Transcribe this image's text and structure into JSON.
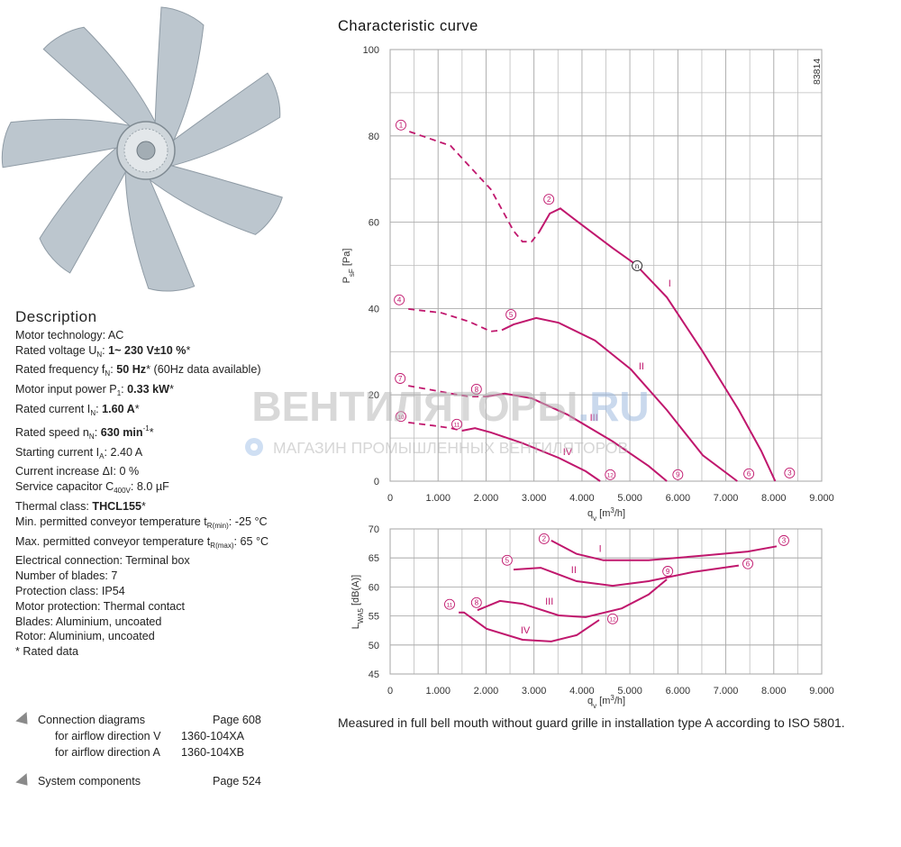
{
  "description": {
    "title": "Description",
    "lines": [
      [
        "Motor technology: AC"
      ],
      [
        "Rated voltage U",
        {
          "text": "N",
          "style": "sub"
        },
        ": ",
        {
          "text": "1~ 230 V±10 %",
          "style": "bold"
        },
        "*"
      ],
      [
        "Rated frequency f",
        {
          "text": "N",
          "style": "sub"
        },
        ": ",
        {
          "text": "50 Hz",
          "style": "bold"
        },
        "* (60Hz data available)"
      ],
      [
        "Motor input power P",
        {
          "text": "1",
          "style": "sub"
        },
        ": ",
        {
          "text": "0.33 kW",
          "style": "bold"
        },
        "*"
      ],
      [
        "Rated current I",
        {
          "text": "N",
          "style": "sub"
        },
        ": ",
        {
          "text": "1.60 A",
          "style": "bold"
        },
        "*"
      ],
      [
        "Rated speed n",
        {
          "text": "N",
          "style": "sub"
        },
        ": ",
        {
          "text": "630 min",
          "style": "bold"
        },
        {
          "text": "-1",
          "style": "sup"
        },
        "*"
      ],
      [
        "Starting current I",
        {
          "text": "A",
          "style": "sub"
        },
        ": 2.40 A"
      ],
      [
        "Current increase ΔI: 0 %"
      ],
      [
        "Service capacitor C",
        {
          "text": "400V",
          "style": "sub"
        },
        ": 8.0 µF"
      ],
      [
        "Thermal class: ",
        {
          "text": "THCL155",
          "style": "bold"
        },
        "*"
      ],
      [
        "Min. permitted conveyor temperature t",
        {
          "text": "R(min)",
          "style": "sub"
        },
        ": -25 °C"
      ],
      [
        "Max. permitted conveyor temperature t",
        {
          "text": "R(max)",
          "style": "sub"
        },
        ": 65 °C"
      ],
      [
        "Electrical connection: Terminal box"
      ],
      [
        "Number of blades: 7"
      ],
      [
        "Protection class: IP54"
      ],
      [
        "Motor protection: Thermal contact"
      ],
      [
        "Blades: Aluminium, uncoated"
      ],
      [
        "Rotor: Aluminium, uncoated"
      ],
      [
        "* Rated data"
      ]
    ]
  },
  "links": [
    {
      "title": "Connection diagrams",
      "page": "Page 608",
      "items": [
        {
          "text": "for airflow direction V",
          "code": "1360-104XA"
        },
        {
          "text": "for airflow direction A",
          "code": "1360-104XB"
        }
      ]
    },
    {
      "title": "System components",
      "page": "Page 524"
    }
  ],
  "note": "Measured in full bell mouth without guard grille in installation type A according to ISO 5801.",
  "watermark": {
    "title": "ВЕНТИЛЯТОРЫ",
    "domain": ".RU",
    "subtitle": "МАГАЗИН ПРОМЫШЛЕННЫХ ВЕНТИЛЯТОРОВ"
  },
  "chart_data": [
    {
      "type": "line",
      "title": "Characteristic curve",
      "code": "83814",
      "x_label": [
        "q",
        {
          "text": "v",
          "style": "sub"
        },
        " [m",
        {
          "text": "3",
          "style": "sup"
        },
        "/h]"
      ],
      "y_label": [
        "P",
        {
          "text": "sF",
          "style": "sub"
        },
        " [Pa]"
      ],
      "xlim": [
        0,
        9000
      ],
      "ylim": [
        0,
        100
      ],
      "xticks": [
        0,
        {
          "value": 1000,
          "label": "1.000"
        },
        {
          "value": 2000,
          "label": "2.000"
        },
        {
          "value": 3000,
          "label": "3.000"
        },
        {
          "value": 4000,
          "label": "4.000"
        },
        {
          "value": 5000,
          "label": "5.000"
        },
        {
          "value": 6000,
          "label": "6.000"
        },
        {
          "value": 7000,
          "label": "7.000"
        },
        {
          "value": 8000,
          "label": "8.000"
        },
        {
          "value": 9000,
          "label": "9.000"
        }
      ],
      "yticks": [
        0,
        20,
        40,
        60,
        80,
        100
      ],
      "grid_step": {
        "x": 500,
        "y": 10
      },
      "series": [
        {
          "color": "#c0176d",
          "dash_x": [
            400,
            1260,
            2100,
            2575,
            2760,
            2950,
            3100
          ],
          "dash_values": [
            81,
            77.7,
            67.6,
            58,
            55.5,
            55.5,
            57.6
          ],
          "x": [
            3100,
            3330,
            3550,
            3890,
            4640,
            5110,
            5770,
            6520,
            7270,
            7740,
            8030
          ],
          "values": [
            57.6,
            62,
            63.2,
            60.3,
            54,
            50.3,
            42.6,
            30,
            16.5,
            7,
            0
          ]
        },
        {
          "color": "#c0176d",
          "dash_x": [
            380,
            1070,
            1640,
            2100,
            2330
          ],
          "dash_values": [
            39.9,
            39,
            37,
            34.7,
            35
          ],
          "x": [
            2330,
            2575,
            3045,
            3515,
            4270,
            5020,
            5770,
            6520,
            7240
          ],
          "values": [
            35,
            36.3,
            37.8,
            36.7,
            32.6,
            25.9,
            16.5,
            6,
            0
          ]
        },
        {
          "color": "#c0176d",
          "dash_x": [
            380,
            1070,
            1640,
            2010
          ],
          "dash_values": [
            22.1,
            20.7,
            19.6,
            19.6
          ],
          "x": [
            2010,
            2390,
            2950,
            3700,
            4640,
            5390,
            5770
          ],
          "values": [
            19.6,
            20.3,
            19.2,
            15.4,
            9.2,
            3.5,
            0
          ]
        },
        {
          "color": "#c0176d",
          "dash_x": [
            380,
            880,
            1260,
            1500
          ],
          "dash_values": [
            13.6,
            12.9,
            12.3,
            11.7
          ],
          "x": [
            1500,
            1770,
            2100,
            2760,
            3515,
            4080,
            4380
          ],
          "values": [
            11.7,
            12.3,
            11.3,
            8.8,
            5.4,
            2.3,
            0
          ]
        }
      ],
      "annotations": [
        {
          "text": "1",
          "x": 225,
          "y": 82.5,
          "shape": "circle",
          "color": "#c0176d"
        },
        {
          "text": "2",
          "x": 3310,
          "y": 65.3,
          "shape": "circle",
          "color": "#c0176d"
        },
        {
          "text": "3",
          "x": 8330,
          "y": 1.9,
          "shape": "circle",
          "color": "#c0176d"
        },
        {
          "text": "4",
          "x": 190,
          "y": 42,
          "shape": "circle",
          "color": "#c0176d"
        },
        {
          "text": "5",
          "x": 2520,
          "y": 38.6,
          "shape": "circle",
          "color": "#c0176d"
        },
        {
          "text": "6",
          "x": 7480,
          "y": 1.7,
          "shape": "circle",
          "color": "#c0176d"
        },
        {
          "text": "7",
          "x": 210,
          "y": 23.8,
          "shape": "circle",
          "color": "#c0176d"
        },
        {
          "text": "8",
          "x": 1800,
          "y": 21.3,
          "shape": "circle",
          "color": "#c0176d"
        },
        {
          "text": "9",
          "x": 6000,
          "y": 1.5,
          "shape": "circle",
          "color": "#c0176d"
        },
        {
          "text": "10",
          "x": 225,
          "y": 15,
          "shape": "circle",
          "color": "#c0176d"
        },
        {
          "text": "11",
          "x": 1390,
          "y": 13.2,
          "shape": "circle",
          "color": "#c0176d"
        },
        {
          "text": "12",
          "x": 4590,
          "y": 1.5,
          "shape": "circle",
          "color": "#c0176d"
        },
        {
          "text": "n",
          "x": 5150,
          "y": 49.9,
          "shape": "circle",
          "color": "#222222"
        },
        {
          "text": "I",
          "x": 5830,
          "y": 45.9,
          "color": "#c0176d"
        },
        {
          "text": "II",
          "x": 5240,
          "y": 26.7,
          "color": "#c0176d"
        },
        {
          "text": "III",
          "x": 4250,
          "y": 14.8,
          "color": "#c0176d"
        },
        {
          "text": "IV",
          "x": 3700,
          "y": 6.9,
          "color": "#c0176d"
        }
      ]
    },
    {
      "type": "line",
      "x_label": [
        "q",
        {
          "text": "v",
          "style": "sub"
        },
        " [m",
        {
          "text": "3",
          "style": "sup"
        },
        "/h]"
      ],
      "y_label": [
        "L",
        {
          "text": "WA5",
          "style": "sub"
        },
        " [dB(A)]"
      ],
      "xlim": [
        0,
        9000
      ],
      "ylim": [
        45,
        70
      ],
      "xticks": [
        0,
        {
          "value": 1000,
          "label": "1.000"
        },
        {
          "value": 2000,
          "label": "2.000"
        },
        {
          "value": 3000,
          "label": "3.000"
        },
        {
          "value": 4000,
          "label": "4.000"
        },
        {
          "value": 5000,
          "label": "5.000"
        },
        {
          "value": 6000,
          "label": "6.000"
        },
        {
          "value": 7000,
          "label": "7.000"
        },
        {
          "value": 8000,
          "label": "8.000"
        },
        {
          "value": 9000,
          "label": "9.000"
        }
      ],
      "yticks": [
        45,
        50,
        55,
        60,
        65,
        70
      ],
      "grid_step": {
        "x": 500,
        "y": 5
      },
      "series": [
        {
          "color": "#c0176d",
          "x": [
            3360,
            3890,
            4450,
            5390,
            6520,
            7460,
            8060
          ],
          "values": [
            68,
            65.7,
            64.6,
            64.6,
            65.4,
            66.1,
            67
          ]
        },
        {
          "color": "#c0176d",
          "x": [
            2575,
            3140,
            3890,
            4640,
            5390,
            6330,
            7270
          ],
          "values": [
            63,
            63.3,
            61,
            60.2,
            61,
            62.6,
            63.7
          ]
        },
        {
          "color": "#c0176d",
          "x": [
            1820,
            2290,
            2760,
            3515,
            4080,
            4830,
            5390,
            5770
          ],
          "values": [
            56,
            57.6,
            57.1,
            55.1,
            54.8,
            56.3,
            58.7,
            61.3
          ]
        },
        {
          "color": "#c0176d",
          "x": [
            1430,
            1540,
            2010,
            2760,
            3360,
            3890,
            4360
          ],
          "values": [
            55.6,
            55.6,
            52.8,
            50.9,
            50.6,
            51.7,
            54.3
          ]
        }
      ],
      "annotations": [
        {
          "text": "2",
          "x": 3210,
          "y": 68.3,
          "shape": "circle",
          "color": "#c0176d"
        },
        {
          "text": "3",
          "x": 8210,
          "y": 68,
          "shape": "circle",
          "color": "#c0176d"
        },
        {
          "text": "5",
          "x": 2440,
          "y": 64.6,
          "shape": "circle",
          "color": "#c0176d"
        },
        {
          "text": "9",
          "x": 5790,
          "y": 62.7,
          "shape": "circle",
          "color": "#c0176d"
        },
        {
          "text": "6",
          "x": 7460,
          "y": 64,
          "shape": "circle",
          "color": "#c0176d"
        },
        {
          "text": "8",
          "x": 1800,
          "y": 57.3,
          "shape": "circle",
          "color": "#c0176d"
        },
        {
          "text": "11",
          "x": 1240,
          "y": 57,
          "shape": "circle",
          "color": "#c0176d"
        },
        {
          "text": "12",
          "x": 4640,
          "y": 54.5,
          "shape": "circle",
          "color": "#c0176d"
        },
        {
          "text": "I",
          "x": 4380,
          "y": 66.7,
          "color": "#c0176d"
        },
        {
          "text": "II",
          "x": 3830,
          "y": 63,
          "color": "#c0176d"
        },
        {
          "text": "III",
          "x": 3320,
          "y": 57.6,
          "color": "#c0176d"
        },
        {
          "text": "IV",
          "x": 2820,
          "y": 52.6,
          "color": "#c0176d"
        }
      ]
    }
  ]
}
